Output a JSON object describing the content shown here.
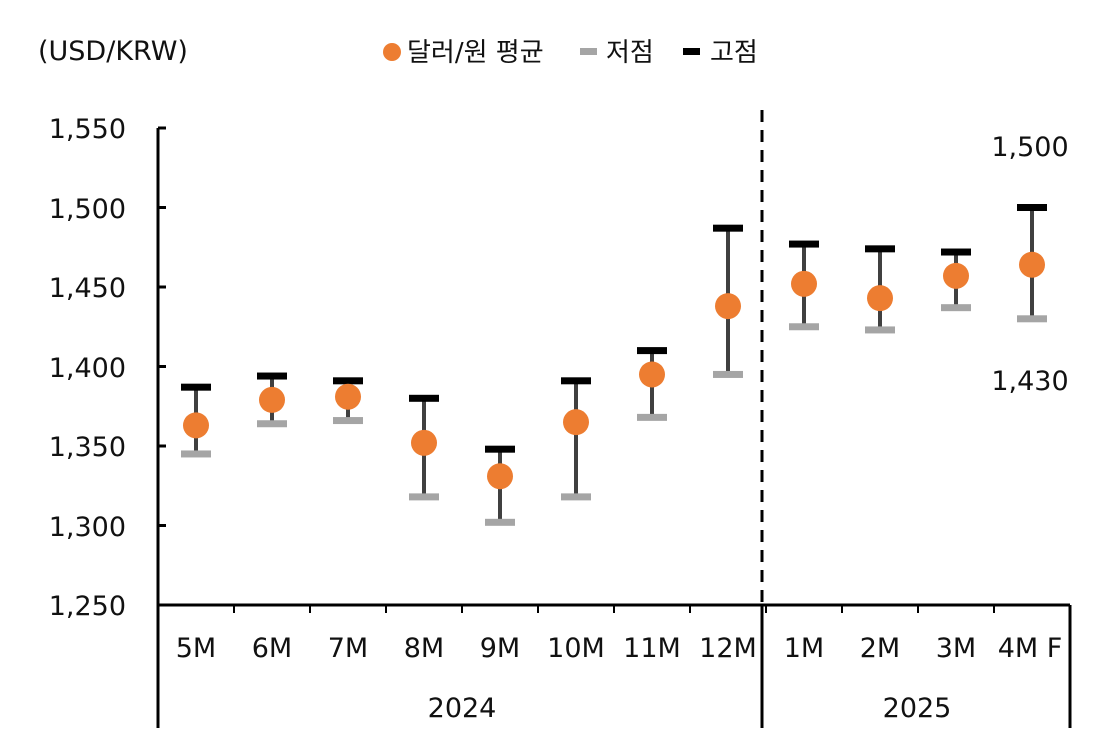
{
  "chart_data": {
    "type": "scatter",
    "unit_label": "(USD/KRW)",
    "legend": {
      "avg": "달러/원 평균",
      "low": "저점",
      "high": "고점"
    },
    "categories": [
      "5M",
      "6M",
      "7M",
      "8M",
      "9M",
      "10M",
      "11M",
      "12M",
      "1M",
      "2M",
      "3M",
      "4M F"
    ],
    "groups": [
      {
        "label": "2024",
        "count": 8
      },
      {
        "label": "2025",
        "count": 4
      }
    ],
    "series": [
      {
        "name": "달러/원 평균",
        "values": [
          1363,
          1379,
          1381,
          1352,
          1331,
          1365,
          1395,
          1438,
          1452,
          1443,
          1457,
          1464
        ]
      },
      {
        "name": "저점",
        "values": [
          1345,
          1364,
          1366,
          1318,
          1302,
          1318,
          1368,
          1395,
          1425,
          1423,
          1437,
          1430
        ]
      },
      {
        "name": "고점",
        "values": [
          1387,
          1394,
          1391,
          1380,
          1348,
          1391,
          1410,
          1487,
          1477,
          1474,
          1472,
          1500
        ]
      }
    ],
    "ylim": [
      1250,
      1550
    ],
    "yticks": [
      "1,250",
      "1,300",
      "1,350",
      "1,400",
      "1,450",
      "1,500",
      "1,550"
    ],
    "annotations": {
      "high_label": "1,500",
      "low_label": "1,430"
    },
    "grid": false,
    "legend_position": "top",
    "colors": {
      "avg": "#ED7D31",
      "low": "#A5A5A5",
      "high": "#000000",
      "whisker": "#404040"
    }
  }
}
